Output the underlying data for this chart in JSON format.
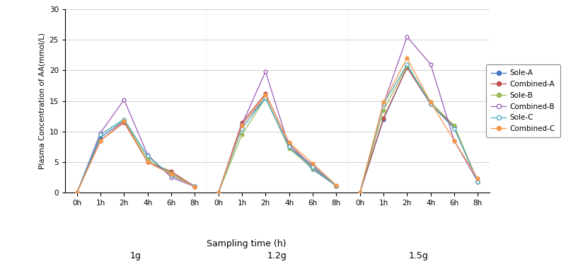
{
  "groups": [
    "1g",
    "1.2g",
    "1.5g"
  ],
  "timepoints": [
    "0h",
    "1h",
    "2h",
    "4h",
    "6h",
    "8h"
  ],
  "series": {
    "Sole-A": {
      "color": "#4472C4",
      "fillstyle": "full",
      "data_1g": [
        0.0,
        9.0,
        11.8,
        5.0,
        3.2,
        1.1
      ],
      "data_1.2g": [
        0.0,
        11.2,
        15.5,
        7.5,
        3.8,
        1.1
      ],
      "data_1.5g": [
        0.0,
        12.0,
        20.5,
        14.5,
        10.8,
        1.8
      ]
    },
    "Combined-A": {
      "color": "#C0504D",
      "fillstyle": "full",
      "data_1g": [
        0.0,
        8.5,
        11.5,
        5.0,
        3.5,
        1.0
      ],
      "data_1.2g": [
        0.0,
        11.5,
        16.2,
        8.0,
        4.2,
        1.1
      ],
      "data_1.5g": [
        0.0,
        12.2,
        20.5,
        14.5,
        10.8,
        1.8
      ]
    },
    "Sole-B": {
      "color": "#9BBB59",
      "fillstyle": "full",
      "data_1g": [
        0.0,
        9.5,
        12.0,
        5.5,
        3.2,
        1.0
      ],
      "data_1.2g": [
        0.0,
        9.5,
        15.5,
        7.2,
        4.0,
        1.1
      ],
      "data_1.5g": [
        0.0,
        13.5,
        20.8,
        14.8,
        11.0,
        1.8
      ]
    },
    "Combined-B": {
      "color": "#9B59B6",
      "fillstyle": "none",
      "data_1g": [
        0.0,
        9.8,
        15.2,
        6.2,
        2.5,
        1.0
      ],
      "data_1.2g": [
        0.0,
        11.2,
        19.8,
        7.5,
        4.5,
        1.1
      ],
      "data_1.5g": [
        0.0,
        14.5,
        25.5,
        21.0,
        8.5,
        1.8
      ]
    },
    "Sole-C": {
      "color": "#4BACC6",
      "fillstyle": "none",
      "data_1g": [
        0.0,
        9.5,
        12.0,
        6.0,
        2.8,
        1.1
      ],
      "data_1.2g": [
        0.0,
        10.5,
        15.5,
        7.5,
        4.2,
        1.1
      ],
      "data_1.5g": [
        0.0,
        14.5,
        21.0,
        14.5,
        10.5,
        1.8
      ]
    },
    "Combined-C": {
      "color": "#F79646",
      "fillstyle": "full",
      "data_1g": [
        0.0,
        8.5,
        11.7,
        5.0,
        3.0,
        1.0
      ],
      "data_1.2g": [
        0.0,
        11.0,
        16.0,
        8.2,
        4.8,
        1.2
      ],
      "data_1.5g": [
        0.0,
        14.8,
        22.0,
        14.8,
        8.5,
        2.3
      ]
    }
  },
  "ylabel": "Plasma Concentration of AA(mmol/L)",
  "xlabel": "Sampling time (h)",
  "ylim": [
    0,
    30
  ],
  "yticks": [
    0,
    5,
    10,
    15,
    20,
    25,
    30
  ],
  "background_color": "#ffffff",
  "grid_color": "#d0d0d0",
  "figsize": [
    8.0,
    3.73
  ],
  "dpi": 100
}
